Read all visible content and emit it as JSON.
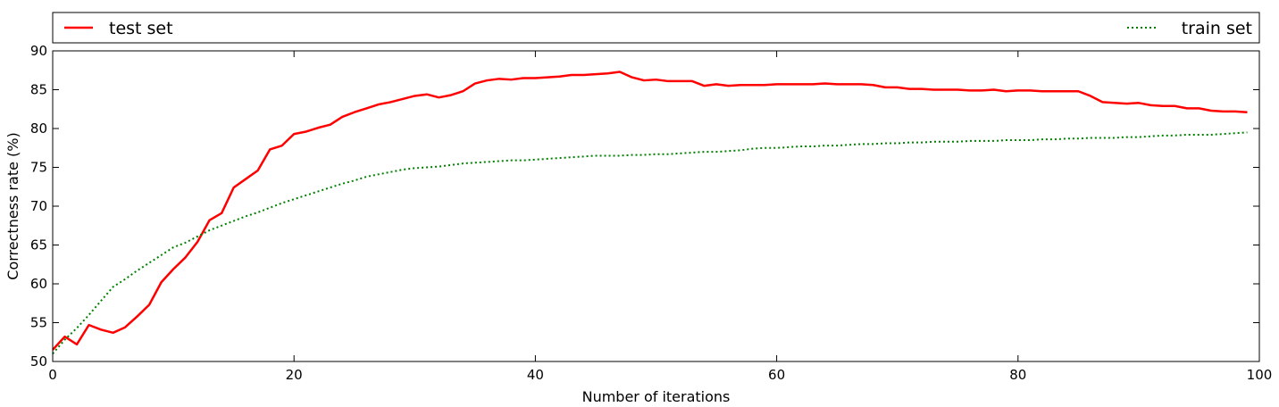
{
  "chart_data": {
    "type": "line",
    "title": "",
    "xlabel": "Number of iterations",
    "ylabel": "Correctness rate (%)",
    "xlim": [
      0,
      100
    ],
    "ylim": [
      50,
      90
    ],
    "xticks": [
      0,
      20,
      40,
      60,
      80,
      100
    ],
    "yticks": [
      50,
      55,
      60,
      65,
      70,
      75,
      80,
      85,
      90
    ],
    "grid": false,
    "legend_placement": "top, above plot",
    "series": [
      {
        "name": "test set",
        "color": "#ff0000",
        "style": "solid",
        "x": [
          0,
          1,
          2,
          3,
          4,
          5,
          6,
          7,
          8,
          9,
          10,
          11,
          12,
          13,
          14,
          15,
          16,
          17,
          18,
          19,
          20,
          21,
          22,
          23,
          24,
          25,
          26,
          27,
          28,
          29,
          30,
          31,
          32,
          33,
          34,
          35,
          36,
          37,
          38,
          39,
          40,
          41,
          42,
          43,
          44,
          45,
          46,
          47,
          48,
          49,
          50,
          51,
          52,
          53,
          54,
          55,
          56,
          57,
          58,
          59,
          60,
          61,
          62,
          63,
          64,
          65,
          66,
          67,
          68,
          69,
          70,
          71,
          72,
          73,
          74,
          75,
          76,
          77,
          78,
          79,
          80,
          81,
          82,
          83,
          84,
          85,
          86,
          87,
          88,
          89,
          90,
          91,
          92,
          93,
          94,
          95,
          96,
          97,
          98,
          99
        ],
        "values": [
          51.5,
          53.2,
          52.2,
          54.7,
          54.1,
          53.7,
          54.4,
          55.8,
          57.3,
          60.2,
          61.9,
          63.4,
          65.4,
          68.2,
          69.1,
          72.4,
          73.5,
          74.6,
          77.3,
          77.8,
          79.3,
          79.6,
          80.1,
          80.5,
          81.5,
          82.1,
          82.6,
          83.1,
          83.4,
          83.8,
          84.2,
          84.4,
          84.0,
          84.3,
          84.8,
          85.8,
          86.2,
          86.4,
          86.3,
          86.5,
          86.5,
          86.6,
          86.7,
          86.9,
          86.9,
          87.0,
          87.1,
          87.3,
          86.6,
          86.2,
          86.3,
          86.1,
          86.1,
          86.1,
          85.5,
          85.7,
          85.5,
          85.6,
          85.6,
          85.6,
          85.7,
          85.7,
          85.7,
          85.7,
          85.8,
          85.7,
          85.7,
          85.7,
          85.6,
          85.3,
          85.3,
          85.1,
          85.1,
          85.0,
          85.0,
          85.0,
          84.9,
          84.9,
          85.0,
          84.8,
          84.9,
          84.9,
          84.8,
          84.8,
          84.8,
          84.8,
          84.2,
          83.4,
          83.3,
          83.2,
          83.3,
          83.0,
          82.9,
          82.9,
          82.6,
          82.6,
          82.3,
          82.2,
          82.2,
          82.1
        ]
      },
      {
        "name": "train set",
        "color": "#008000",
        "style": "dotted",
        "x": [
          0,
          1,
          2,
          3,
          4,
          5,
          6,
          7,
          8,
          9,
          10,
          11,
          12,
          13,
          14,
          15,
          16,
          17,
          18,
          19,
          20,
          21,
          22,
          23,
          24,
          25,
          26,
          27,
          28,
          29,
          30,
          31,
          32,
          33,
          34,
          35,
          36,
          37,
          38,
          39,
          40,
          41,
          42,
          43,
          44,
          45,
          46,
          47,
          48,
          49,
          50,
          51,
          52,
          53,
          54,
          55,
          56,
          57,
          58,
          59,
          60,
          61,
          62,
          63,
          64,
          65,
          66,
          67,
          68,
          69,
          70,
          71,
          72,
          73,
          74,
          75,
          76,
          77,
          78,
          79,
          80,
          81,
          82,
          83,
          84,
          85,
          86,
          87,
          88,
          89,
          90,
          91,
          92,
          93,
          94,
          95,
          96,
          97,
          98,
          99
        ],
        "values": [
          51.0,
          52.8,
          54.3,
          56.0,
          57.8,
          59.6,
          60.6,
          61.7,
          62.7,
          63.7,
          64.7,
          65.3,
          66.1,
          66.9,
          67.5,
          68.1,
          68.7,
          69.2,
          69.8,
          70.4,
          70.9,
          71.4,
          71.9,
          72.4,
          72.9,
          73.3,
          73.8,
          74.1,
          74.4,
          74.7,
          74.9,
          75.0,
          75.1,
          75.3,
          75.5,
          75.6,
          75.7,
          75.8,
          75.9,
          75.9,
          76.0,
          76.1,
          76.2,
          76.3,
          76.4,
          76.5,
          76.5,
          76.5,
          76.6,
          76.6,
          76.7,
          76.7,
          76.8,
          76.9,
          77.0,
          77.0,
          77.1,
          77.2,
          77.4,
          77.5,
          77.5,
          77.6,
          77.7,
          77.7,
          77.8,
          77.8,
          77.9,
          78.0,
          78.0,
          78.1,
          78.1,
          78.2,
          78.2,
          78.3,
          78.3,
          78.3,
          78.4,
          78.4,
          78.4,
          78.5,
          78.5,
          78.5,
          78.6,
          78.6,
          78.7,
          78.7,
          78.8,
          78.8,
          78.8,
          78.9,
          78.9,
          79.0,
          79.1,
          79.1,
          79.2,
          79.2,
          79.2,
          79.3,
          79.4,
          79.5
        ]
      }
    ]
  }
}
